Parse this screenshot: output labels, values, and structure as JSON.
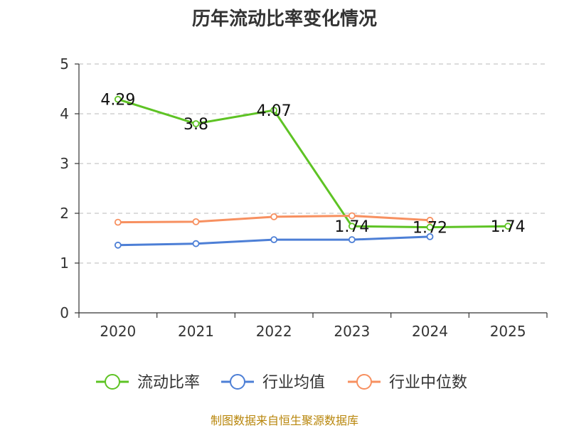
{
  "chart_data": {
    "type": "line",
    "title": "历年流动比率变化情况",
    "categories": [
      "2020",
      "2021",
      "2022",
      "2023",
      "2024",
      "2025"
    ],
    "ylim": [
      0,
      5
    ],
    "yticks": [
      0,
      1,
      2,
      3,
      4,
      5
    ],
    "grid": true,
    "legend_position": "bottom",
    "series": [
      {
        "name": "流动比率",
        "color": "#5ec324",
        "values": [
          4.29,
          3.8,
          4.07,
          1.74,
          1.72,
          1.74
        ],
        "labels": [
          "4.29",
          "3.8",
          "4.07",
          "1.74",
          "1.72",
          "1.74"
        ],
        "show_labels": true
      },
      {
        "name": "行业均值",
        "color": "#4d7fd6",
        "values": [
          1.36,
          1.39,
          1.47,
          1.47,
          1.53,
          null
        ],
        "show_labels": false
      },
      {
        "name": "行业中位数",
        "color": "#f79060",
        "values": [
          1.82,
          1.83,
          1.93,
          1.95,
          1.86,
          null
        ],
        "show_labels": false
      }
    ],
    "source": "制图数据来自恒生聚源数据库"
  }
}
